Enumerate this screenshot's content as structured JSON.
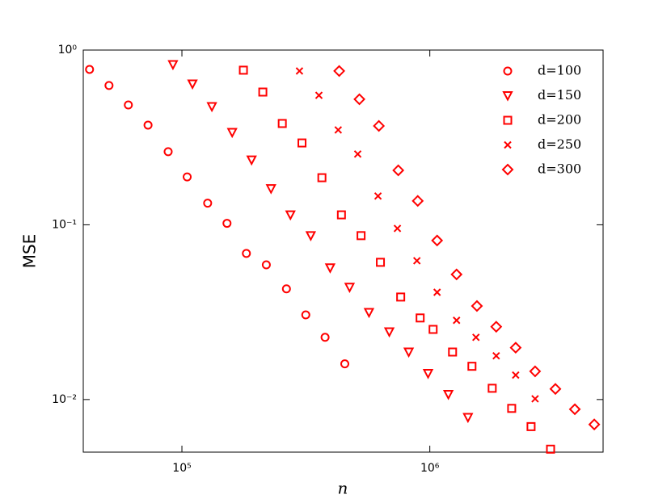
{
  "chart_data": {
    "type": "scatter",
    "xlabel": "n",
    "ylabel": "MSE",
    "xscale": "log",
    "yscale": "log",
    "xlim": [
      40000,
      5000000
    ],
    "ylim": [
      0.005,
      1
    ],
    "xticks": [
      {
        "value": 100000,
        "label": "10⁵"
      },
      {
        "value": 1000000,
        "label": "10⁶"
      }
    ],
    "yticks": [
      {
        "value": 0.01,
        "label": "10⁻²"
      },
      {
        "value": 0.1,
        "label": "10⁻¹"
      },
      {
        "value": 1,
        "label": "10⁰"
      }
    ],
    "legend": "upper right",
    "series": [
      {
        "name": "d=100",
        "color": "#ff0000",
        "marker": "circle",
        "x": [
          42400,
          50800,
          60800,
          73000,
          88000,
          105000,
          127000,
          152000,
          182000,
          219000,
          264000,
          316000,
          378000,
          454000
        ],
        "values": [
          0.775,
          0.627,
          0.485,
          0.372,
          0.262,
          0.188,
          0.133,
          0.102,
          0.0686,
          0.059,
          0.043,
          0.0305,
          0.0227,
          0.016
        ]
      },
      {
        "name": "d=150",
        "color": "#ff0000",
        "marker": "triangle-down",
        "x": [
          92000,
          110300,
          132100,
          159500,
          191000,
          228800,
          274000,
          330900,
          396300,
          474600,
          568400,
          686400,
          822000,
          984000,
          1188000,
          1425000
        ],
        "values": [
          0.826,
          0.64,
          0.475,
          0.338,
          0.235,
          0.161,
          0.114,
          0.0867,
          0.0567,
          0.0439,
          0.0315,
          0.0244,
          0.0187,
          0.0141,
          0.0107,
          0.0079
        ]
      },
      {
        "name": "d=200",
        "color": "#ff0000",
        "marker": "square",
        "x": [
          177000,
          212000,
          254000,
          305000,
          367000,
          440000,
          528000,
          632000,
          763000,
          914000,
          1031000,
          1235000,
          1479000,
          1785000,
          2139000,
          2561000,
          3069000
        ],
        "values": [
          0.767,
          0.575,
          0.38,
          0.294,
          0.186,
          0.114,
          0.0867,
          0.061,
          0.0386,
          0.0293,
          0.0252,
          0.0187,
          0.0155,
          0.0116,
          0.0089,
          0.007,
          0.0052
        ]
      },
      {
        "name": "d=250",
        "color": "#ff0000",
        "marker": "x",
        "x": [
          298000,
          357000,
          427000,
          512000,
          618000,
          740000,
          887000,
          1070000,
          1282000,
          1535000,
          1853000,
          2220000,
          2659000
        ],
        "values": [
          0.759,
          0.551,
          0.349,
          0.254,
          0.146,
          0.0953,
          0.0623,
          0.0411,
          0.0284,
          0.0227,
          0.0178,
          0.0138,
          0.0101
        ]
      },
      {
        "name": "d=300",
        "color": "#ff0000",
        "marker": "diamond",
        "x": [
          431000,
          520000,
          623000,
          746000,
          894000,
          1070000,
          1282000,
          1549000,
          1853000,
          2220000,
          2659000,
          3211000,
          3846000,
          4607000
        ],
        "values": [
          0.759,
          0.523,
          0.368,
          0.205,
          0.137,
          0.0813,
          0.052,
          0.0343,
          0.0261,
          0.0198,
          0.0145,
          0.0115,
          0.0088,
          0.0072
        ]
      }
    ]
  }
}
